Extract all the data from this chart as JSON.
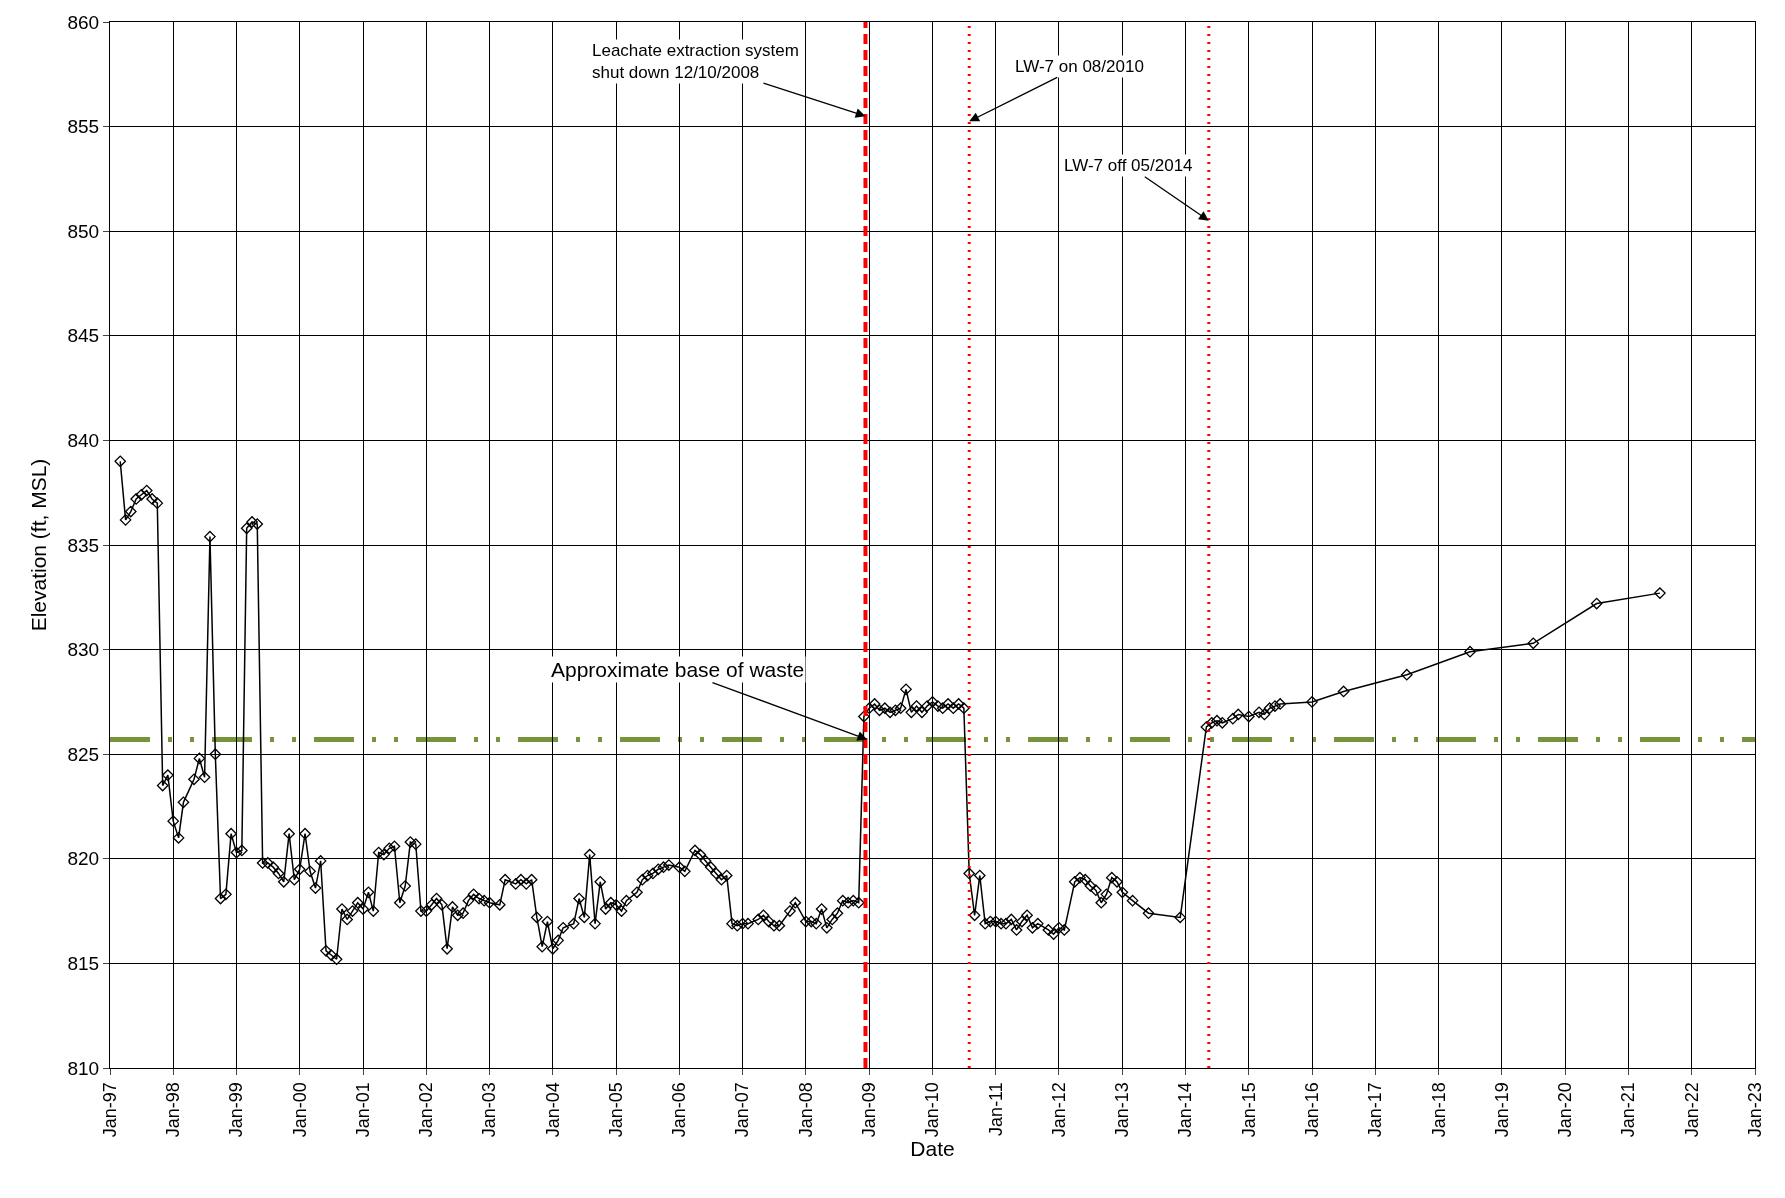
{
  "chart_data": {
    "type": "line",
    "xlabel": "Date",
    "ylabel": "Elevation (ft, MSL)",
    "x": [
      "1997-03",
      "1997-04",
      "1997-05",
      "1997-06",
      "1997-07",
      "1997-08",
      "1997-09",
      "1997-10",
      "1997-11",
      "1997-12",
      "1998-01",
      "1998-02",
      "1998-03",
      "1998-05",
      "1998-06",
      "1998-07",
      "1998-08",
      "1998-09",
      "1998-10",
      "1998-11",
      "1998-12",
      "1999-01",
      "1999-02",
      "1999-03",
      "1999-04",
      "1999-05",
      "1999-06",
      "1999-07",
      "1999-08",
      "1999-09",
      "1999-10",
      "1999-11",
      "1999-12",
      "2000-01",
      "2000-02",
      "2000-03",
      "2000-04",
      "2000-05",
      "2000-06",
      "2000-07",
      "2000-08",
      "2000-09",
      "2000-10",
      "2000-11",
      "2000-12",
      "2001-01",
      "2001-02",
      "2001-03",
      "2001-04",
      "2001-05",
      "2001-06",
      "2001-07",
      "2001-08",
      "2001-09",
      "2001-10",
      "2001-11",
      "2001-12",
      "2002-01",
      "2002-02",
      "2002-03",
      "2002-04",
      "2002-05",
      "2002-06",
      "2002-07",
      "2002-08",
      "2002-09",
      "2002-10",
      "2002-11",
      "2002-12",
      "2003-01",
      "2003-03",
      "2003-04",
      "2003-06",
      "2003-07",
      "2003-08",
      "2003-09",
      "2003-10",
      "2003-11",
      "2003-12",
      "2004-01",
      "2004-02",
      "2004-03",
      "2004-05",
      "2004-06",
      "2004-07",
      "2004-08",
      "2004-09",
      "2004-10",
      "2004-11",
      "2004-12",
      "2005-01",
      "2005-02",
      "2005-03",
      "2005-05",
      "2005-06",
      "2005-07",
      "2005-08",
      "2005-09",
      "2005-10",
      "2005-11",
      "2006-01",
      "2006-02",
      "2006-04",
      "2006-05",
      "2006-06",
      "2006-07",
      "2006-08",
      "2006-09",
      "2006-10",
      "2006-11",
      "2006-12",
      "2007-01",
      "2007-02",
      "2007-04",
      "2007-05",
      "2007-06",
      "2007-07",
      "2007-08",
      "2007-10",
      "2007-11",
      "2008-01",
      "2008-02",
      "2008-03",
      "2008-04",
      "2008-05",
      "2008-06",
      "2008-07",
      "2008-08",
      "2008-09",
      "2008-10",
      "2008-11",
      "2008-12",
      "2009-01",
      "2009-02",
      "2009-03",
      "2009-04",
      "2009-05",
      "2009-06",
      "2009-07",
      "2009-08",
      "2009-09",
      "2009-10",
      "2009-11",
      "2009-12",
      "2010-01",
      "2010-02",
      "2010-03",
      "2010-04",
      "2010-05",
      "2010-06",
      "2010-07",
      "2010-08",
      "2010-09",
      "2010-10",
      "2010-11",
      "2010-12",
      "2011-01",
      "2011-02",
      "2011-03",
      "2011-04",
      "2011-05",
      "2011-06",
      "2011-07",
      "2011-08",
      "2011-09",
      "2011-11",
      "2011-12",
      "2012-01",
      "2012-02",
      "2012-04",
      "2012-05",
      "2012-06",
      "2012-07",
      "2012-08",
      "2012-09",
      "2012-10",
      "2012-11",
      "2012-12",
      "2013-01",
      "2013-03",
      "2013-06",
      "2013-12",
      "2014-05",
      "2014-06",
      "2014-07",
      "2014-08",
      "2014-10",
      "2014-11",
      "2015-01",
      "2015-03",
      "2015-04",
      "2015-05",
      "2015-06",
      "2015-07",
      "2016-01",
      "2016-07",
      "2017-07",
      "2018-07",
      "2019-07",
      "2020-07",
      "2021-07"
    ],
    "series": [
      {
        "color": "#000000",
        "values": [
          839.0,
          836.2,
          836.6,
          837.2,
          837.4,
          837.6,
          837.2,
          837.0,
          823.5,
          824.0,
          821.8,
          821.0,
          822.7,
          823.8,
          824.8,
          823.9,
          835.4,
          825.0,
          818.1,
          818.3,
          821.2,
          820.3,
          820.4,
          835.8,
          836.1,
          836.0,
          819.8,
          819.8,
          819.6,
          819.3,
          818.9,
          821.2,
          819.0,
          819.5,
          821.2,
          819.4,
          818.6,
          819.9,
          815.6,
          815.4,
          815.2,
          817.6,
          817.1,
          817.5,
          817.9,
          817.6,
          818.4,
          817.5,
          820.3,
          820.2,
          820.5,
          820.6,
          817.9,
          818.7,
          820.8,
          820.7,
          817.5,
          817.5,
          817.8,
          818.1,
          817.8,
          815.7,
          817.7,
          817.3,
          817.4,
          818.0,
          818.3,
          818.1,
          818.0,
          817.9,
          817.8,
          819.0,
          818.8,
          819.0,
          818.8,
          819.0,
          817.2,
          815.8,
          817.0,
          815.7,
          816.1,
          816.7,
          816.9,
          818.1,
          817.2,
          820.2,
          816.9,
          818.9,
          817.6,
          817.9,
          817.8,
          817.5,
          818.0,
          818.4,
          819.0,
          819.2,
          819.3,
          819.5,
          819.6,
          819.7,
          819.6,
          819.4,
          820.4,
          820.2,
          819.9,
          819.6,
          819.3,
          819.0,
          819.2,
          816.9,
          816.8,
          816.9,
          816.9,
          817.1,
          817.3,
          817.0,
          816.8,
          816.8,
          817.5,
          817.9,
          817.0,
          817.0,
          816.9,
          817.6,
          816.7,
          817.1,
          817.4,
          818.0,
          817.9,
          818.0,
          817.9,
          826.8,
          827.2,
          827.4,
          827.1,
          827.2,
          827.0,
          827.1,
          827.2,
          828.1,
          827.0,
          827.3,
          827.0,
          827.3,
          827.5,
          827.3,
          827.2,
          827.4,
          827.2,
          827.4,
          827.2,
          819.3,
          817.3,
          819.2,
          816.9,
          817.0,
          817.0,
          816.9,
          816.9,
          817.1,
          816.6,
          817.0,
          817.3,
          816.7,
          816.9,
          816.6,
          816.4,
          816.7,
          816.6,
          818.9,
          819.1,
          819.0,
          818.7,
          818.5,
          817.9,
          818.3,
          819.1,
          818.9,
          818.4,
          818.0,
          817.4,
          817.2,
          826.3,
          826.5,
          826.6,
          826.5,
          826.7,
          826.9,
          826.8,
          827.0,
          826.9,
          827.2,
          827.3,
          827.4,
          827.5,
          828.0,
          828.8,
          829.9,
          830.3,
          832.2,
          832.7
        ]
      }
    ],
    "marker": "diamond",
    "line_style": "solid",
    "xlim": [
      "1997-01-01",
      "2023-01-01"
    ],
    "xticks": [
      {
        "value": "1997-01-01",
        "label": "Jan-97"
      },
      {
        "value": "1998-01-01",
        "label": "Jan-98"
      },
      {
        "value": "1999-01-01",
        "label": "Jan-99"
      },
      {
        "value": "2000-01-01",
        "label": "Jan-00"
      },
      {
        "value": "2001-01-01",
        "label": "Jan-01"
      },
      {
        "value": "2002-01-01",
        "label": "Jan-02"
      },
      {
        "value": "2003-01-01",
        "label": "Jan-03"
      },
      {
        "value": "2004-01-01",
        "label": "Jan-04"
      },
      {
        "value": "2005-01-01",
        "label": "Jan-05"
      },
      {
        "value": "2006-01-01",
        "label": "Jan-06"
      },
      {
        "value": "2007-01-01",
        "label": "Jan-07"
      },
      {
        "value": "2008-01-01",
        "label": "Jan-08"
      },
      {
        "value": "2009-01-01",
        "label": "Jan-09"
      },
      {
        "value": "2010-01-01",
        "label": "Jan-10"
      },
      {
        "value": "2011-01-01",
        "label": "Jan-11"
      },
      {
        "value": "2012-01-01",
        "label": "Jan-12"
      },
      {
        "value": "2013-01-01",
        "label": "Jan-13"
      },
      {
        "value": "2014-01-01",
        "label": "Jan-14"
      },
      {
        "value": "2015-01-01",
        "label": "Jan-15"
      },
      {
        "value": "2016-01-01",
        "label": "Jan-16"
      },
      {
        "value": "2017-01-01",
        "label": "Jan-17"
      },
      {
        "value": "2018-01-01",
        "label": "Jan-18"
      },
      {
        "value": "2019-01-01",
        "label": "Jan-19"
      },
      {
        "value": "2020-01-01",
        "label": "Jan-20"
      },
      {
        "value": "2021-01-01",
        "label": "Jan-21"
      },
      {
        "value": "2022-01-01",
        "label": "Jan-22"
      },
      {
        "value": "2023-01-01",
        "label": "Jan-23"
      }
    ],
    "ylim": [
      810,
      860
    ],
    "yticks": [
      810,
      815,
      820,
      825,
      830,
      835,
      840,
      845,
      850,
      855,
      860
    ],
    "grid": true,
    "ref_lines": [
      {
        "axis": "y",
        "value": 825.7,
        "label": "Approximate base of waste",
        "color": "#77933c",
        "line_style": "dashed"
      },
      {
        "axis": "x",
        "value": "2008-12-10",
        "label": "Leachate extraction system\nshut down 12/10/2008",
        "color": "#ff0000",
        "line_style": "dashed"
      },
      {
        "axis": "x",
        "value": "2010-08-01",
        "label": "LW-7 on 08/2010",
        "color": "#ff0000",
        "line_style": "dotted"
      },
      {
        "axis": "x",
        "value": "2014-05-15",
        "label": "LW-7 off 05/2014",
        "color": "#ff0000",
        "line_style": "dotted"
      }
    ]
  }
}
